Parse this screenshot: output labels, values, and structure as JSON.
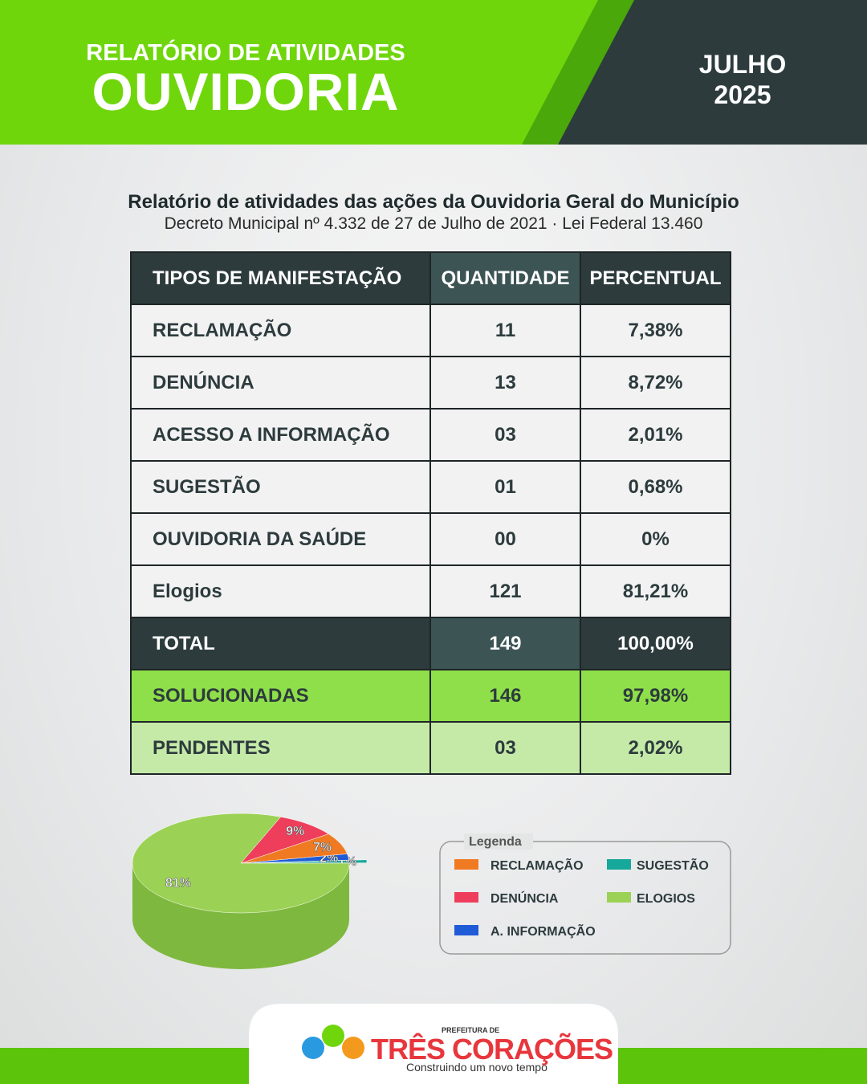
{
  "header": {
    "title": "RELATÓRIO DE ATIVIDADES",
    "main": "OUVIDORIA",
    "month": "JULHO",
    "year": "2025"
  },
  "subtitle": "Relatório de atividades das ações da Ouvidoria Geral do Município",
  "decree": "Decreto Municipal nº 4.332 de 27 de Julho de 2021 · Lei Federal 13.460",
  "table": {
    "header": [
      "TIPOS DE MANIFESTAÇÃO",
      "QUANTIDADE",
      "PERCENTUAL"
    ],
    "rows": [
      [
        "RECLAMAÇÃO",
        "11",
        "7,38%"
      ],
      [
        "DENÚNCIA",
        "13",
        "8,72%"
      ],
      [
        "ACESSO A INFORMAÇÃO",
        "03",
        "2,01%"
      ],
      [
        "SUGESTÃO",
        "01",
        "0,68%"
      ],
      [
        "OUVIDORIA DA SAÚDE",
        "00",
        "0%"
      ],
      [
        "Elogios",
        "121",
        "81,21%"
      ],
      [
        "TOTAL",
        "149",
        "100,00%"
      ],
      [
        "SOLUCIONADAS",
        "146",
        "97,98%"
      ],
      [
        "PENDENTES",
        "03",
        "2,02%"
      ]
    ]
  },
  "chart_data": {
    "type": "pie",
    "legend_title": "Legenda",
    "categories": [
      "RECLAMAÇÃO",
      "DENÚNCIA",
      "A. INFORMAÇÃO",
      "SUGESTÃO",
      "ELOGIOS"
    ],
    "values": [
      7,
      9,
      2,
      1,
      81
    ],
    "value_labels": [
      "7%",
      "9%",
      "2%",
      "1%",
      "81%"
    ],
    "colors": [
      "#f07a22",
      "#ee3e5c",
      "#1f5bd6",
      "#16a89a",
      "#9bd255"
    ]
  },
  "footer": {
    "prefix": "PREFEITURA DE",
    "name": "TRÊS CORAÇÕES",
    "tagline": "Construindo um novo tempo"
  }
}
